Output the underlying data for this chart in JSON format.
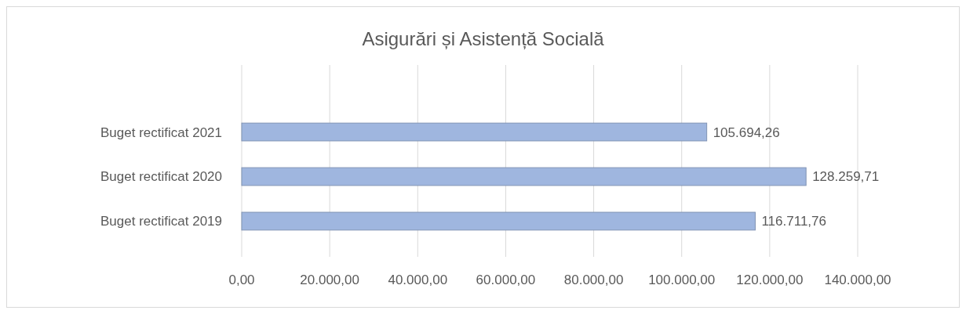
{
  "chart_data": {
    "type": "bar",
    "orientation": "horizontal",
    "title": "Asigurări și Asistență Socială",
    "categories": [
      "Buget rectificat 2021",
      "Buget rectificat 2020",
      "Buget rectificat 2019"
    ],
    "values": [
      105694.26,
      128259.71,
      116711.76
    ],
    "value_labels": [
      "105.694,26",
      "128.259,71",
      "116.711,76"
    ],
    "color": "#9fb6df",
    "xlim": [
      0,
      140000
    ],
    "xticks": [
      {
        "value": 0,
        "label": "0,00"
      },
      {
        "value": 20000,
        "label": "20.000,00"
      },
      {
        "value": 40000,
        "label": "40.000,00"
      },
      {
        "value": 60000,
        "label": "60.000,00"
      },
      {
        "value": 80000,
        "label": "80.000,00"
      },
      {
        "value": 100000,
        "label": "100.000,00"
      },
      {
        "value": 120000,
        "label": "120.000,00"
      },
      {
        "value": 140000,
        "label": "140.000,00"
      }
    ],
    "grid": "x"
  }
}
